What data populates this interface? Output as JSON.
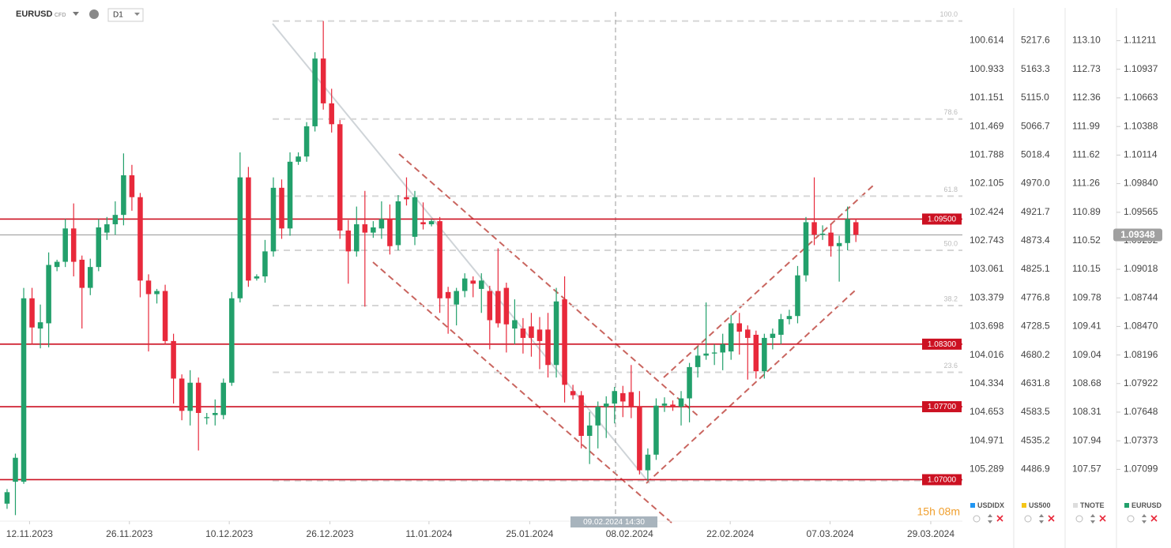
{
  "header": {
    "symbol": "EURUSD",
    "badge": "CFD",
    "timeframe": "D1"
  },
  "chart_data": {
    "type": "candlestick",
    "open": [
      1.0677,
      1.0698,
      1.0698,
      1.0874,
      1.0845,
      1.085,
      1.0904,
      1.0909,
      1.0941,
      1.0911,
      1.0884,
      1.0904,
      1.0937,
      1.0945,
      1.0954,
      1.0992,
      1.0971,
      1.0891,
      1.0878,
      1.0881,
      1.0833,
      1.0797,
      1.0766,
      1.0793,
      1.0759,
      1.0762,
      1.0762,
      1.0793,
      1.0874,
      1.099,
      1.0893,
      1.0895,
      1.0919,
      1.098,
      1.0941,
      1.1005,
      1.101,
      1.1039,
      1.1104,
      1.1061,
      1.1041,
      1.0939,
      1.0919,
      1.0945,
      1.0937,
      1.0941,
      1.095,
      1.0925,
      1.0971,
      1.0933,
      1.0947,
      1.0945,
      1.0948,
      1.088,
      1.0868,
      1.0881,
      1.0891,
      1.0883,
      1.0881,
      1.0881,
      1.0884,
      1.0845,
      1.0845,
      1.0847,
      1.0844,
      1.0844,
      1.081,
      1.0873,
      1.0785,
      1.0781,
      1.0742,
      1.0752,
      1.077,
      1.0773,
      1.0783,
      1.0784,
      1.077,
      1.0709,
      1.0724,
      1.0771,
      1.0772,
      1.077,
      1.0778,
      1.0808,
      1.0819,
      1.0821,
      1.0822,
      1.0823,
      1.085,
      1.0844,
      1.0839,
      1.0804,
      1.0836,
      1.0839,
      1.0854,
      1.0857,
      1.0896,
      1.0947,
      1.0935,
      1.0937,
      1.0924,
      1.0927,
      1.0947
    ],
    "high": [
      1.0691,
      1.0725,
      1.0884,
      1.0884,
      1.0868,
      1.0918,
      1.0911,
      1.095,
      1.0965,
      1.0915,
      1.0912,
      1.095,
      1.0952,
      1.0967,
      1.1013,
      1.1002,
      1.0975,
      1.0897,
      1.0883,
      1.0887,
      1.084,
      1.0801,
      1.0805,
      1.0798,
      1.0764,
      1.0777,
      1.0797,
      1.088,
      1.1014,
      1.1,
      1.0897,
      1.093,
      1.099,
      1.0988,
      1.1014,
      1.1014,
      1.1043,
      1.111,
      1.114,
      1.1075,
      1.1045,
      1.0949,
      1.0962,
      1.0977,
      1.0948,
      1.0967,
      1.0964,
      1.0973,
      1.099,
      1.0977,
      1.0966,
      1.095,
      1.0952,
      1.0885,
      1.0884,
      1.0898,
      1.0895,
      1.0898,
      1.0886,
      1.0922,
      1.0889,
      1.0873,
      1.0855,
      1.086,
      1.0856,
      1.086,
      1.0884,
      1.0895,
      1.0791,
      1.0785,
      1.0765,
      1.0775,
      1.078,
      1.0789,
      1.079,
      1.081,
      1.0785,
      1.073,
      1.0778,
      1.0779,
      1.0776,
      1.0785,
      1.0812,
      1.0828,
      1.087,
      1.083,
      1.084,
      1.0858,
      1.086,
      1.0848,
      1.0843,
      1.084,
      1.0845,
      1.0859,
      1.0863,
      1.0905,
      1.0952,
      1.099,
      1.0944,
      1.0945,
      1.0934,
      1.0962,
      1.095
    ],
    "low": [
      1.0672,
      1.0666,
      1.0696,
      1.083,
      1.0826,
      1.0827,
      1.09,
      1.0904,
      1.0895,
      1.0845,
      1.0877,
      1.09,
      1.093,
      1.0935,
      1.0944,
      1.0958,
      1.0875,
      1.0823,
      1.0869,
      1.083,
      1.0773,
      1.0757,
      1.0752,
      1.0728,
      1.0753,
      1.0752,
      1.0758,
      1.079,
      1.087,
      1.0885,
      1.0891,
      1.0889,
      1.0914,
      1.0931,
      1.0934,
      1.1002,
      1.1005,
      1.1034,
      1.1055,
      1.1033,
      1.0931,
      1.0888,
      1.0914,
      1.0866,
      1.0932,
      1.0931,
      1.0916,
      1.092,
      1.0963,
      1.0925,
      1.094,
      1.0943,
      1.086,
      1.084,
      1.0848,
      1.0875,
      1.0875,
      1.086,
      1.0825,
      1.0846,
      1.0822,
      1.083,
      1.0821,
      1.0818,
      1.0806,
      1.0798,
      1.0798,
      1.0774,
      1.0777,
      1.073,
      1.0715,
      1.073,
      1.074,
      1.0754,
      1.076,
      1.0759,
      1.0705,
      1.0699,
      1.0719,
      1.0765,
      1.0766,
      1.0752,
      1.0755,
      1.0798,
      1.0815,
      1.081,
      1.0805,
      1.0815,
      1.082,
      1.0796,
      1.0797,
      1.0797,
      1.0825,
      1.083,
      1.0849,
      1.085,
      1.089,
      1.0925,
      1.093,
      1.0914,
      1.089,
      1.092,
      1.0928
    ],
    "close": [
      1.0688,
      1.0721,
      1.0874,
      1.0846,
      1.0851,
      1.0906,
      1.0909,
      1.0941,
      1.0909,
      1.0884,
      1.0904,
      1.0942,
      1.0945,
      1.0954,
      1.0992,
      1.0971,
      1.0891,
      1.0878,
      1.0881,
      1.0833,
      1.0797,
      1.0766,
      1.0793,
      1.0764,
      1.076,
      1.0764,
      1.0793,
      1.0874,
      1.099,
      1.0891,
      1.0895,
      1.0919,
      1.098,
      1.0941,
      1.1005,
      1.101,
      1.1039,
      1.1104,
      1.1061,
      1.1041,
      1.0939,
      1.0919,
      1.0945,
      1.0937,
      1.0942,
      1.095,
      1.0924,
      1.0967,
      1.0969,
      1.0971,
      1.0945,
      1.0948,
      1.0874,
      1.0874,
      1.0881,
      1.0893,
      1.0888,
      1.0891,
      1.0853,
      1.085,
      1.0849,
      1.0853,
      1.0836,
      1.0836,
      1.0833,
      1.081,
      1.0871,
      1.0791,
      1.0781,
      1.0742,
      1.0752,
      1.077,
      1.0773,
      1.0785,
      1.0775,
      1.077,
      1.0709,
      1.0724,
      1.0771,
      1.0773,
      1.077,
      1.0778,
      1.0808,
      1.0819,
      1.0821,
      1.0822,
      1.083,
      1.085,
      1.0842,
      1.0836,
      1.0804,
      1.0836,
      1.084,
      1.0854,
      1.0857,
      1.0896,
      1.0947,
      1.0935,
      1.0936,
      1.0924,
      1.0927,
      1.095,
      1.0935
    ],
    "up_color": "#22a06b",
    "down_color": "#e8293b",
    "xlim": [
      -0.85,
      114.8
    ],
    "xticks": [
      {
        "value": 2.7,
        "label": "12.11.2023"
      },
      {
        "value": 14.7,
        "label": "26.11.2023"
      },
      {
        "value": 26.7,
        "label": "10.12.2023"
      },
      {
        "value": 38.8,
        "label": "26.12.2023"
      },
      {
        "value": 50.7,
        "label": "11.01.2024"
      },
      {
        "value": 62.8,
        "label": "25.01.2024"
      },
      {
        "value": 74.8,
        "label": "08.02.2024"
      },
      {
        "value": 86.9,
        "label": "22.02.2024"
      },
      {
        "value": 98.9,
        "label": "07.03.2024"
      },
      {
        "value": 111,
        "label": "29.03.2024"
      }
    ],
    "ylim": [
      1.0664,
      1.1145
    ],
    "yticks": [
      1.11211,
      1.10937,
      1.10663,
      1.10388,
      1.10114,
      {
        "value": 1.0984,
        "label": "1.09840"
      },
      1.09565,
      1.09292,
      1.09018,
      1.08744,
      {
        "value": 1.0847,
        "label": "1.08470"
      },
      1.08196,
      1.07922,
      1.07648,
      1.07373,
      1.07099
    ],
    "levels": [
      {
        "value": 1.095,
        "label": "1.09500"
      },
      {
        "value": 1.083,
        "label": "1.08300"
      },
      {
        "value": 1.077,
        "label": "1.07700"
      },
      {
        "value": 1.07,
        "label": "1.07000"
      }
    ],
    "level_color": "#cc1122",
    "last_price": {
      "value": 1.09348,
      "label": "1.09348"
    },
    "fib_levels": [
      {
        "value": 1.114,
        "label": "100.0"
      },
      {
        "value": 1.1046,
        "label": "78.6"
      },
      {
        "value": 1.0972,
        "label": "61.8"
      },
      {
        "value": 1.092,
        "label": "50.0"
      },
      {
        "value": 1.0867,
        "label": "38.2"
      },
      {
        "value": 1.0803,
        "label": "23.6"
      },
      {
        "value": 1.0699
      }
    ],
    "crosshair_label": "09.02.2024 14:30",
    "comparison_axes": [
      {
        "name": "USDIDX",
        "labels": [
          "100.614",
          "100.933",
          "101.151",
          "101.469",
          "101.788",
          "102.105",
          "102.424",
          "102.743",
          "103.061",
          "103.379",
          "103.698",
          "104.016",
          "104.334",
          "104.653",
          "104.971",
          "105.289"
        ]
      },
      {
        "name": "US500",
        "labels": [
          "5217.6",
          "5163.3",
          "5115.0",
          "5066.7",
          "5018.4",
          "4970.0",
          "4921.7",
          "4873.4",
          "4825.1",
          "4776.8",
          "4728.5",
          "4680.2",
          "4631.8",
          "4583.5",
          "4535.2",
          "4486.9"
        ]
      },
      {
        "name": "TNOTE",
        "labels": [
          "113.10",
          "112.73",
          "112.36",
          "111.99",
          "111.62",
          "111.26",
          "110.89",
          "110.52",
          "110.15",
          "109.78",
          "109.41",
          "109.04",
          "108.68",
          "108.31",
          "107.94",
          "107.57"
        ]
      }
    ],
    "legend": [
      {
        "name": "USDIDX",
        "color": "#2196f3"
      },
      {
        "name": "US500",
        "color": "#f5c518"
      },
      {
        "name": "TNOTE",
        "color": "#dddddd"
      },
      {
        "name": "EURUSD",
        "color": "#22a06b"
      }
    ],
    "countdown": "15h 08m"
  }
}
